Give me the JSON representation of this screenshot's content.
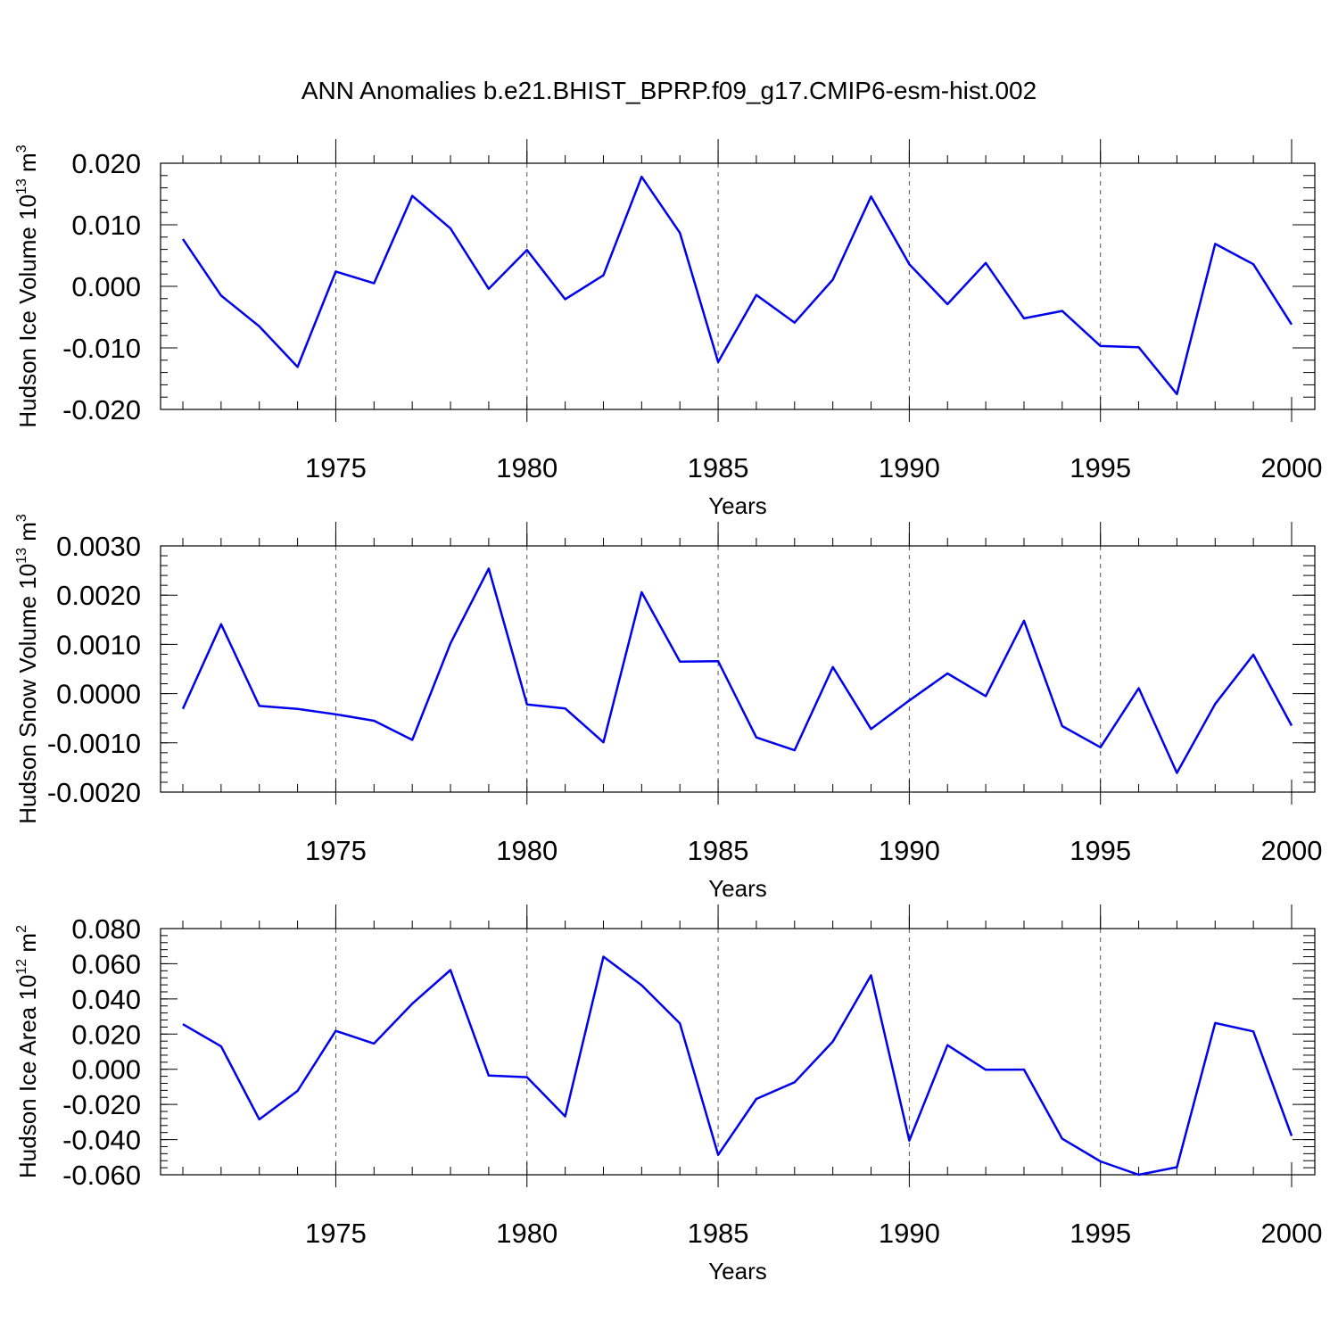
{
  "page_title": "ANN Anomalies b.e21.BHIST_BPRP.f09_g17.CMIP6-esm-hist.002",
  "colors": {
    "line": "#0000ee",
    "axis": "#000000",
    "grid": "#555555"
  },
  "chart_data": [
    {
      "type": "line",
      "title": "",
      "xlabel": "Years",
      "ylabel": {
        "text": "Hudson Ice Volume 10",
        "exp": "13",
        "unit": " m",
        "unit_exp": "3"
      },
      "xlim": [
        1971,
        2000
      ],
      "ylim": [
        -0.02,
        0.02
      ],
      "xticks": [
        1975,
        1980,
        1985,
        1990,
        1995,
        2000
      ],
      "yticks": [
        "0.020",
        "0.010",
        "0.000",
        "-0.010",
        "-0.020"
      ],
      "ytick_values": [
        0.02,
        0.01,
        0.0,
        -0.01,
        -0.02
      ],
      "grid": "vertical dashed at major x ticks",
      "x": [
        1971,
        1972,
        1973,
        1974,
        1975,
        1976,
        1977,
        1978,
        1979,
        1980,
        1981,
        1982,
        1983,
        1984,
        1985,
        1986,
        1987,
        1988,
        1989,
        1990,
        1991,
        1992,
        1993,
        1994,
        1995,
        1996,
        1997,
        1998,
        1999,
        2000
      ],
      "series": [
        {
          "values": [
            0.0077,
            -0.0015,
            -0.0065,
            -0.0131,
            0.0024,
            0.0005,
            0.0147,
            0.0094,
            -0.0004,
            0.0059,
            -0.0021,
            0.0018,
            0.0178,
            0.0087,
            -0.0123,
            -0.0014,
            -0.0059,
            0.0011,
            0.0146,
            0.0036,
            -0.0029,
            0.0038,
            -0.0052,
            -0.004,
            -0.0097,
            -0.0099,
            -0.0175,
            0.0069,
            0.0036,
            -0.0062
          ]
        }
      ]
    },
    {
      "type": "line",
      "title": "",
      "xlabel": "Years",
      "ylabel": {
        "text": "Hudson Snow Volume 10",
        "exp": "13",
        "unit": " m",
        "unit_exp": "3"
      },
      "xlim": [
        1971,
        2000
      ],
      "ylim": [
        -0.002,
        0.003
      ],
      "xticks": [
        1975,
        1980,
        1985,
        1990,
        1995,
        2000
      ],
      "yticks": [
        "0.0030",
        "0.0020",
        "0.0010",
        "0.0000",
        "-0.0010",
        "-0.0020"
      ],
      "ytick_values": [
        0.003,
        0.002,
        0.001,
        0.0,
        -0.001,
        -0.002
      ],
      "grid": "vertical dashed at major x ticks",
      "x": [
        1971,
        1972,
        1973,
        1974,
        1975,
        1976,
        1977,
        1978,
        1979,
        1980,
        1981,
        1982,
        1983,
        1984,
        1985,
        1986,
        1987,
        1988,
        1989,
        1990,
        1991,
        1992,
        1993,
        1994,
        1995,
        1996,
        1997,
        1998,
        1999,
        2000
      ],
      "series": [
        {
          "values": [
            -0.00031,
            0.00141,
            -0.00025,
            -0.00031,
            -0.00042,
            -0.00055,
            -0.00094,
            0.00102,
            0.00254,
            -0.00022,
            -0.0003,
            -0.00099,
            0.00206,
            0.00065,
            0.00066,
            -0.00089,
            -0.00115,
            0.00054,
            -0.00072,
            -0.00014,
            0.00041,
            -5e-05,
            0.00148,
            -0.00066,
            -0.00109,
            0.00011,
            -0.00161,
            -0.00021,
            0.00079,
            -0.00065
          ]
        }
      ]
    },
    {
      "type": "line",
      "title": "",
      "xlabel": "Years",
      "ylabel": {
        "text": "Hudson Ice Area 10",
        "exp": "12",
        "unit": " m",
        "unit_exp": "2"
      },
      "xlim": [
        1971,
        2000
      ],
      "ylim": [
        -0.06,
        0.08
      ],
      "xticks": [
        1975,
        1980,
        1985,
        1990,
        1995,
        2000
      ],
      "yticks": [
        "0.080",
        "0.060",
        "0.040",
        "0.020",
        "0.000",
        "-0.020",
        "-0.040",
        "-0.060"
      ],
      "ytick_values": [
        0.08,
        0.06,
        0.04,
        0.02,
        0.0,
        -0.02,
        -0.04,
        -0.06
      ],
      "grid": "vertical dashed at major x ticks",
      "x": [
        1971,
        1972,
        1973,
        1974,
        1975,
        1976,
        1977,
        1978,
        1979,
        1980,
        1981,
        1982,
        1983,
        1984,
        1985,
        1986,
        1987,
        1988,
        1989,
        1990,
        1991,
        1992,
        1993,
        1994,
        1995,
        1996,
        1997,
        1998,
        1999,
        2000
      ],
      "series": [
        {
          "values": [
            0.0256,
            0.013,
            -0.0285,
            -0.0123,
            0.0218,
            0.0146,
            0.0373,
            0.0564,
            -0.0036,
            -0.0045,
            -0.0268,
            0.064,
            0.0478,
            0.0261,
            -0.0487,
            -0.0169,
            -0.0074,
            0.0158,
            0.0534,
            -0.0405,
            0.0137,
            -0.0003,
            -0.0002,
            -0.0395,
            -0.0524,
            -0.06,
            -0.0557,
            0.0263,
            0.0215,
            -0.0379
          ]
        }
      ]
    }
  ]
}
